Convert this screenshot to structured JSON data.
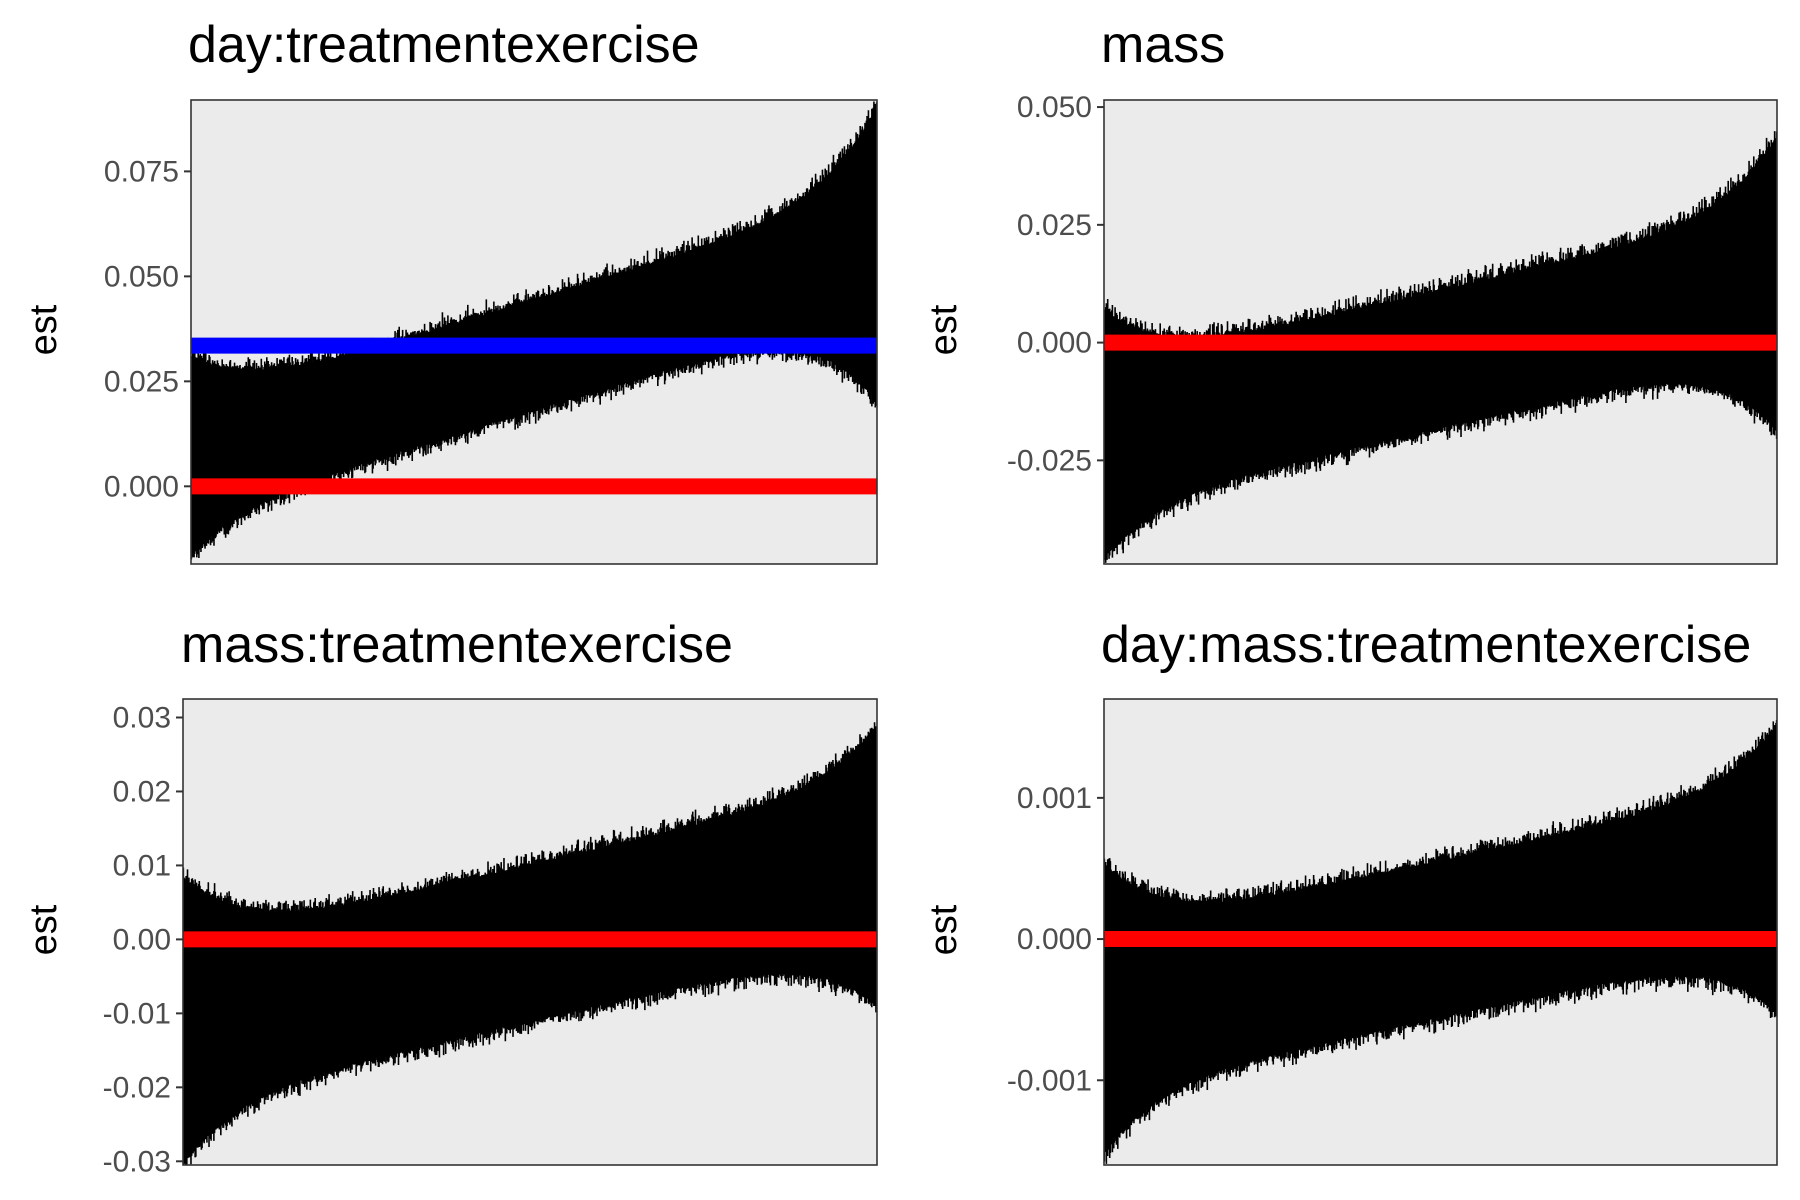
{
  "colors": {
    "panel_background": "#ebebeb",
    "panel_border": "#333333",
    "interval": "#000000",
    "reference_zero": "#ff0000",
    "reference_estimate": "#0000ff"
  },
  "chart_data": [
    {
      "type": "interval",
      "title": "day:treatmentexercise",
      "ylabel": "est",
      "ylim": [
        -0.0185,
        0.092
      ],
      "yticks": [
        0.0,
        0.025,
        0.05,
        0.075
      ],
      "ytick_labels": [
        "0.000",
        "0.025",
        "0.050",
        "0.075"
      ],
      "intervals": {
        "count": 1000,
        "center_start": 0.0095,
        "center_end": 0.053,
        "halfwidth_start": 0.023,
        "halfwidth_mid": 0.013,
        "halfwidth_end": 0.0345
      },
      "hlines": [
        {
          "value": 0.0,
          "color": "#ff0000"
        },
        {
          "value": 0.0335,
          "color": "#0000ff"
        }
      ],
      "grid": false
    },
    {
      "type": "interval",
      "title": "mass",
      "ylabel": "est",
      "ylim": [
        -0.047,
        0.0515
      ],
      "yticks": [
        -0.025,
        0.0,
        0.025,
        0.05
      ],
      "ytick_labels": [
        "-0.025",
        "0.000",
        "0.025",
        "0.050"
      ],
      "intervals": {
        "count": 1000,
        "center_start": -0.018,
        "center_end": 0.011,
        "halfwidth_start": 0.0255,
        "halfwidth_mid": 0.0145,
        "halfwidth_end": 0.0305
      },
      "hlines": [
        {
          "value": 0.0,
          "color": "#ff0000"
        }
      ],
      "grid": false
    },
    {
      "type": "interval",
      "title": "mass:treatmentexercise",
      "ylabel": "est",
      "ylim": [
        -0.0305,
        0.0325
      ],
      "yticks": [
        -0.03,
        -0.02,
        -0.01,
        0.0,
        0.01,
        0.02,
        0.03
      ],
      "ytick_labels": [
        "-0.03",
        "-0.02",
        "-0.01",
        "0.00",
        "0.01",
        "0.02",
        "0.03"
      ],
      "intervals": {
        "count": 1000,
        "center_start": -0.01,
        "center_end": 0.009,
        "halfwidth_start": 0.019,
        "halfwidth_mid": 0.0105,
        "halfwidth_end": 0.0185
      },
      "hlines": [
        {
          "value": 0.0,
          "color": "#ff0000"
        }
      ],
      "grid": false
    },
    {
      "type": "interval",
      "title": "day:mass:treatmentexercise",
      "ylabel": "est",
      "ylim": [
        -0.0016,
        0.0017
      ],
      "yticks": [
        -0.001,
        0.0,
        0.001
      ],
      "ytick_labels": [
        "-0.001",
        "0.000",
        "0.001"
      ],
      "intervals": {
        "count": 1000,
        "center_start": -0.00045,
        "center_end": 0.00045,
        "halfwidth_start": 0.001,
        "halfwidth_mid": 0.00055,
        "halfwidth_end": 0.001
      },
      "hlines": [
        {
          "value": 0.0,
          "color": "#ff0000"
        }
      ],
      "grid": false
    }
  ]
}
